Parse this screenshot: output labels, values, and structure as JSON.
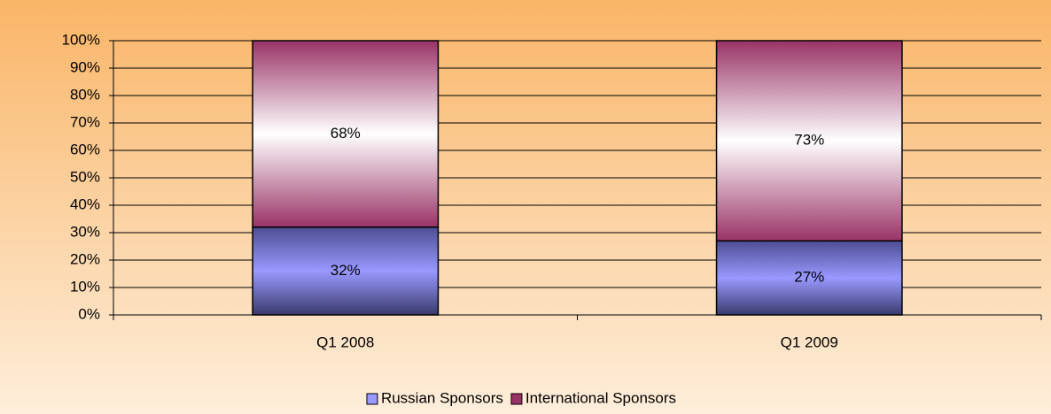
{
  "chart_data": {
    "type": "stacked_bar",
    "categories": [
      "Q1 2008",
      "Q1 2009"
    ],
    "series": [
      {
        "name": "Russian Sponsors",
        "color": "#9999ff",
        "values": [
          32,
          27
        ],
        "value_labels": [
          "32%",
          "27%"
        ]
      },
      {
        "name": "International Sponsors",
        "color": "#993366",
        "values": [
          68,
          73
        ],
        "value_labels": [
          "68%",
          "73%"
        ]
      }
    ],
    "ylim": [
      0,
      100
    ],
    "yticks": [
      {
        "value": 0,
        "label": "0%"
      },
      {
        "value": 10,
        "label": "10%"
      },
      {
        "value": 20,
        "label": "20%"
      },
      {
        "value": 30,
        "label": "30%"
      },
      {
        "value": 40,
        "label": "40%"
      },
      {
        "value": 50,
        "label": "50%"
      },
      {
        "value": 60,
        "label": "60%"
      },
      {
        "value": 70,
        "label": "70%"
      },
      {
        "value": 80,
        "label": "80%"
      },
      {
        "value": 90,
        "label": "90%"
      },
      {
        "value": 100,
        "label": "100%"
      }
    ],
    "grid": true,
    "legend": "bottom"
  }
}
